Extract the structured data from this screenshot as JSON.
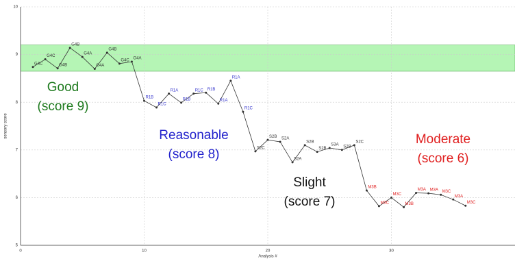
{
  "chart_data": {
    "type": "line",
    "x_label": "Analysis #",
    "y_label": "sensory score",
    "x": [
      1,
      2,
      3,
      4,
      5,
      6,
      7,
      8,
      9,
      10,
      11,
      12,
      13,
      14,
      15,
      16,
      17,
      18,
      19,
      20,
      21,
      22,
      23,
      24,
      25,
      26,
      27,
      28,
      29,
      30,
      31,
      32,
      33,
      34,
      35,
      36
    ],
    "series": [
      {
        "color": "#333333",
        "values": [
          8.74,
          8.9,
          8.71,
          9.14,
          8.95,
          8.7,
          9.04,
          8.81,
          8.85,
          8.03,
          7.89,
          8.18,
          7.99,
          8.18,
          8.2,
          7.97,
          8.45,
          7.8,
          6.97,
          7.21,
          7.17,
          6.74,
          7.1,
          6.96,
          7.04,
          7.0,
          7.1,
          6.15,
          5.82,
          6.0,
          5.8,
          6.1,
          6.09,
          6.06,
          5.96,
          5.83
        ],
        "point_labels": [
          "G4C",
          "G4C",
          "G4B",
          "G4B",
          "G4A",
          "G4A",
          "G4B",
          "G4C",
          "G4A",
          "R1B",
          "R1C",
          "R1A",
          "R1B",
          "R1C",
          "R1B",
          "R1A",
          "R1A",
          "R1C",
          "S2C",
          "S2B",
          "S2A",
          "S2A",
          "S2B",
          "S2B",
          "S3A",
          "S2B",
          "S2C",
          "M3B",
          "M3C",
          "M3C",
          "M3B",
          "M3A",
          "M3A",
          "M3C",
          "M3A",
          "M3C"
        ],
        "label_colors": [
          "#333333",
          "#333333",
          "#333333",
          "#333333",
          "#333333",
          "#333333",
          "#333333",
          "#333333",
          "#333333",
          "#3333cc",
          "#3333cc",
          "#3333cc",
          "#3333cc",
          "#3333cc",
          "#3333cc",
          "#3333cc",
          "#3333cc",
          "#3333cc",
          "#333333",
          "#333333",
          "#333333",
          "#333333",
          "#333333",
          "#333333",
          "#333333",
          "#333333",
          "#333333",
          "#e02020",
          "#e02020",
          "#e02020",
          "#e02020",
          "#e02020",
          "#e02020",
          "#e02020",
          "#e02020",
          "#e02020"
        ]
      }
    ],
    "band": [
      8.65,
      9.2
    ],
    "band_color": "#b5f5b5",
    "annotations": [
      {
        "lines": [
          "Good",
          "(score 9)"
        ],
        "color": "#1e7a1e"
      },
      {
        "lines": [
          "Reasonable",
          "(score 8)"
        ],
        "color": "#2222cc"
      },
      {
        "lines": [
          "Slight",
          "(score 7)"
        ],
        "color": "#111111"
      },
      {
        "lines": [
          "Moderate",
          "(score 6)"
        ],
        "color": "#e02020"
      }
    ],
    "xlim": [
      0,
      40
    ],
    "ylim": [
      5,
      10
    ],
    "xticks": [
      0,
      10,
      20,
      30
    ],
    "yticks": [
      5,
      6,
      7,
      8,
      9,
      10
    ],
    "grid": true
  }
}
